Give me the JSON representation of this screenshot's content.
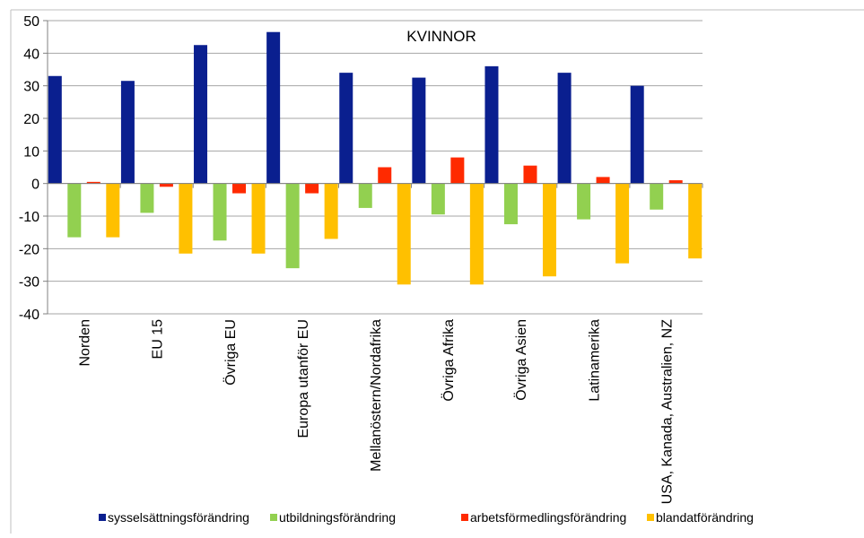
{
  "chart_data": {
    "type": "bar",
    "title": "KVINNOR",
    "xlabel": "",
    "ylabel": "",
    "ylim": [
      -40,
      50
    ],
    "yticks": [
      50,
      40,
      30,
      20,
      10,
      0,
      -10,
      -20,
      -30,
      -40
    ],
    "grid": true,
    "legend_position": "bottom",
    "categories": [
      "Norden",
      "EU 15",
      "Övriga EU",
      "Europa utanför EU",
      "Mellanöstern/Nordafrika",
      "Övriga Afrika",
      "Övriga Asien",
      "Latinamerika",
      "USA, Kanada, Australien, NZ"
    ],
    "series": [
      {
        "name": "sysselsättningsförändring",
        "color": "#0a1f8f",
        "values": [
          33,
          31.5,
          42.5,
          46.5,
          34,
          32.5,
          36,
          34,
          30
        ]
      },
      {
        "name": "utbildningsförändring",
        "color": "#92d050",
        "values": [
          -16.5,
          -9,
          -17.5,
          -26,
          -7.5,
          -9.5,
          -12.5,
          -11,
          -8
        ]
      },
      {
        "name": "arbetsförmedlingsförändring",
        "color": "#ff2a00",
        "values": [
          0.5,
          -1,
          -3,
          -3,
          5,
          8,
          5.5,
          2,
          1
        ]
      },
      {
        "name": "blandatförändring",
        "color": "#ffc000",
        "values": [
          -16.5,
          -21.5,
          -21.5,
          -17,
          -31,
          -31,
          -28.5,
          -24.5,
          -23
        ]
      }
    ]
  }
}
